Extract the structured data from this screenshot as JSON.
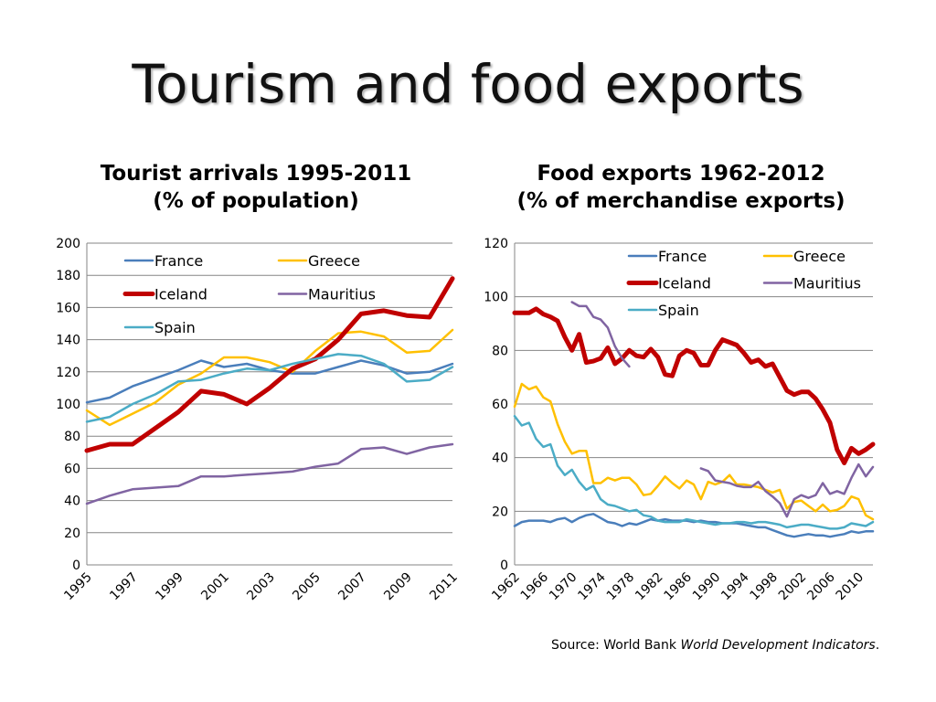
{
  "slide": {
    "title": "Tourism and food exports",
    "source_prefix": "Source: World Bank ",
    "source_italic": "World Development Indicators",
    "source_suffix": "."
  },
  "chart_data": [
    {
      "type": "line",
      "title": "Tourist arrivals 1995-2011",
      "subtitle": "(% of population)",
      "xlabel": "",
      "ylabel": "",
      "x": [
        1995,
        1996,
        1997,
        1998,
        1999,
        2000,
        2001,
        2002,
        2003,
        2004,
        2005,
        2006,
        2007,
        2008,
        2009,
        2010,
        2011
      ],
      "x_tick_labels": [
        "1995",
        "1997",
        "1999",
        "2001",
        "2003",
        "2005",
        "2007",
        "2009",
        "2011"
      ],
      "ylim": [
        0,
        200
      ],
      "y_ticks": [
        0,
        20,
        40,
        60,
        80,
        100,
        120,
        140,
        160,
        180,
        200
      ],
      "grid": true,
      "legend": "top",
      "series": [
        {
          "name": "France",
          "color": "#4A7EBB",
          "width": 2.5,
          "values": [
            101,
            104,
            111,
            116,
            121,
            127,
            123,
            125,
            121,
            119,
            119,
            123,
            127,
            124,
            119,
            120,
            125
          ]
        },
        {
          "name": "Greece",
          "color": "#FFC000",
          "width": 2.5,
          "values": [
            96,
            87,
            94,
            101,
            112,
            119,
            129,
            129,
            126,
            120,
            133,
            144,
            145,
            142,
            132,
            133,
            146
          ]
        },
        {
          "name": "Iceland",
          "color": "#C00000",
          "width": 5,
          "values": [
            71,
            75,
            75,
            85,
            95,
            108,
            106,
            100,
            110,
            122,
            128,
            140,
            156,
            158,
            155,
            154,
            178
          ]
        },
        {
          "name": "Mauritius",
          "color": "#8064A2",
          "width": 2.5,
          "values": [
            38,
            43,
            47,
            48,
            49,
            55,
            55,
            56,
            57,
            58,
            61,
            63,
            72,
            73,
            69,
            73,
            75
          ]
        },
        {
          "name": "Spain",
          "color": "#4BACC6",
          "width": 2.5,
          "values": [
            89,
            92,
            100,
            106,
            114,
            115,
            119,
            122,
            121,
            125,
            128,
            131,
            130,
            125,
            114,
            115,
            123
          ]
        }
      ]
    },
    {
      "type": "line",
      "title": "Food exports 1962-2012",
      "subtitle": "(% of merchandise exports)",
      "xlabel": "",
      "ylabel": "",
      "x": [
        1962,
        1963,
        1964,
        1965,
        1966,
        1967,
        1968,
        1969,
        1970,
        1971,
        1972,
        1973,
        1974,
        1975,
        1976,
        1977,
        1978,
        1979,
        1980,
        1981,
        1982,
        1983,
        1984,
        1985,
        1986,
        1987,
        1988,
        1989,
        1990,
        1991,
        1992,
        1993,
        1994,
        1995,
        1996,
        1997,
        1998,
        1999,
        2000,
        2001,
        2002,
        2003,
        2004,
        2005,
        2006,
        2007,
        2008,
        2009,
        2010,
        2011,
        2012
      ],
      "x_tick_labels": [
        "1962",
        "1966",
        "1970",
        "1974",
        "1978",
        "1982",
        "1986",
        "1990",
        "1994",
        "1998",
        "2002",
        "2006",
        "2010"
      ],
      "ylim": [
        0,
        120
      ],
      "y_ticks": [
        0,
        20,
        40,
        60,
        80,
        100,
        120
      ],
      "grid": true,
      "legend": "top",
      "series": [
        {
          "name": "France",
          "color": "#4A7EBB",
          "width": 2.5,
          "values": [
            14.5,
            16,
            16.5,
            16.5,
            16.5,
            16,
            17,
            17.5,
            16,
            17.5,
            18.5,
            19,
            17.5,
            16,
            15.5,
            14.5,
            15.5,
            15,
            16,
            17,
            16.5,
            17,
            16.5,
            16.5,
            16.5,
            16,
            16.5,
            16,
            16,
            15.5,
            15.5,
            15.5,
            15,
            14.5,
            14,
            14,
            13,
            12,
            11,
            10.5,
            11,
            11.5,
            11,
            11,
            10.5,
            11,
            11.5,
            12.5,
            12,
            12.5,
            12.5
          ]
        },
        {
          "name": "Greece",
          "color": "#FFC000",
          "width": 2.5,
          "values": [
            59,
            67.5,
            65.5,
            66.5,
            62.5,
            61,
            52.5,
            46,
            41.5,
            42.5,
            42.5,
            30.5,
            30.5,
            32.5,
            31.5,
            32.5,
            32.5,
            30,
            26,
            26.5,
            29.5,
            33,
            30.5,
            28.5,
            31.5,
            30,
            24.5,
            31,
            30,
            31,
            33.5,
            30,
            30,
            29.5,
            29,
            28,
            27,
            28,
            21,
            23.5,
            24,
            22,
            20,
            22.5,
            20,
            20.5,
            22,
            25.5,
            24.5,
            18.5,
            17
          ]
        },
        {
          "name": "Iceland",
          "color": "#C00000",
          "width": 5,
          "values": [
            94,
            94,
            94,
            95.5,
            93.5,
            92.5,
            91,
            85,
            80,
            86,
            75.5,
            76,
            77,
            81,
            75,
            77,
            80,
            78,
            77.5,
            80.5,
            77.5,
            71,
            70.5,
            78,
            80,
            79,
            74.5,
            74.5,
            80,
            84,
            83,
            82,
            79,
            75.5,
            76.5,
            74,
            75,
            70,
            65,
            63.5,
            64.5,
            64.5,
            62,
            58,
            53,
            43,
            38,
            43.5,
            41.5,
            43,
            45
          ]
        },
        {
          "name": "Mauritius",
          "color": "#8064A2",
          "width": 2.5,
          "values": [
            null,
            null,
            null,
            null,
            null,
            null,
            null,
            null,
            98,
            96.5,
            96.5,
            92.5,
            91.5,
            88.5,
            81.5,
            77,
            74,
            null,
            null,
            null,
            null,
            null,
            null,
            null,
            null,
            null,
            36,
            35,
            31.5,
            31,
            30.5,
            29.5,
            29,
            29,
            31,
            27.5,
            25.5,
            23,
            18,
            24.5,
            26,
            25,
            26,
            30.5,
            26.5,
            27.5,
            26.5,
            32.5,
            37.5,
            33,
            36.5
          ]
        },
        {
          "name": "Spain",
          "color": "#4BACC6",
          "width": 2.5,
          "values": [
            55.5,
            52,
            53,
            47,
            44,
            45,
            37,
            33.5,
            35.5,
            31,
            28,
            29.5,
            24.5,
            22.5,
            22,
            21,
            20,
            20.5,
            18.5,
            18,
            16.5,
            16,
            16,
            16,
            17,
            16.5,
            16,
            15.5,
            15,
            15.5,
            15.5,
            16,
            16,
            15.5,
            16,
            16,
            15.5,
            15,
            14,
            14.5,
            15,
            15,
            14.5,
            14,
            13.5,
            13.5,
            14,
            15.5,
            15,
            14.5,
            16
          ]
        }
      ]
    }
  ]
}
